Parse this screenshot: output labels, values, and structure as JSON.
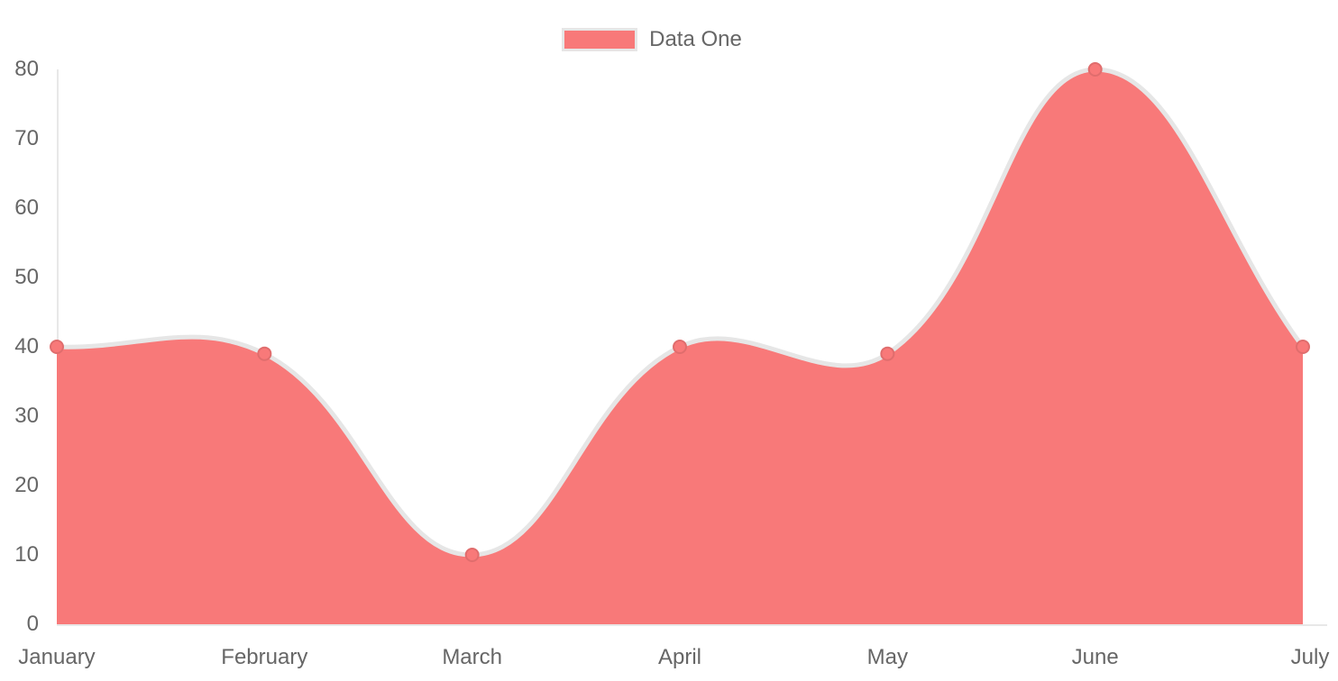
{
  "legend": {
    "label": "Data One"
  },
  "colors": {
    "fill": "#f87979",
    "line": "#e6e6e6",
    "point_fill": "#f87979",
    "point_border": "#e06d6d",
    "axis": "#e8e8e8",
    "text": "#666666"
  },
  "chart_data": {
    "type": "area",
    "title": "",
    "categories": [
      "January",
      "February",
      "March",
      "April",
      "May",
      "June",
      "July"
    ],
    "series": [
      {
        "name": "Data One",
        "values": [
          40,
          39,
          10,
          40,
          39,
          80,
          40
        ],
        "color": "#f87979"
      }
    ],
    "xlabel": "",
    "ylabel": "",
    "ylim": [
      0,
      80
    ],
    "ytick_step": 10,
    "y_ticks": [
      0,
      10,
      20,
      30,
      40,
      50,
      60,
      70,
      80
    ],
    "grid": false,
    "legend_position": "top",
    "line_tension": 0.4
  }
}
